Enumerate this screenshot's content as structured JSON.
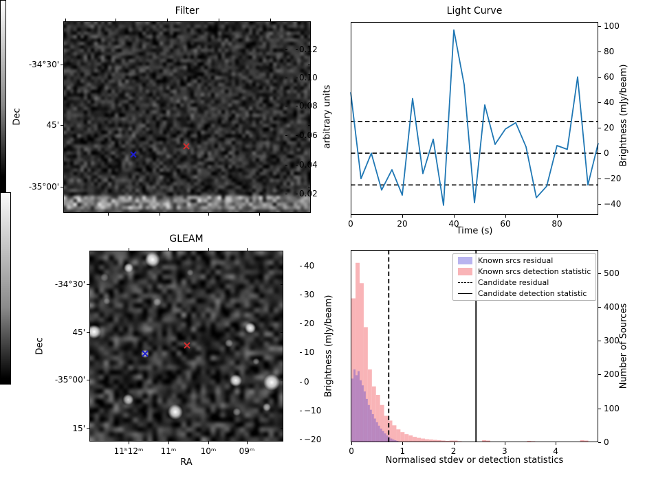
{
  "chart_data": [
    {
      "id": "filter",
      "type": "heatmap",
      "title": "Filter",
      "ylabel": "Dec",
      "yticks": [
        "-34°30'",
        "45'",
        "-35°00'"
      ],
      "colorbar": {
        "label": "arbitrary units",
        "ticks": [
          "0.12",
          "0.10",
          "0.08",
          "0.06",
          "0.04",
          "0.02"
        ]
      },
      "markers": [
        {
          "name": "known-source-marker",
          "color": "#1f1fd0",
          "fx": 0.283,
          "fy": 0.695
        },
        {
          "name": "candidate-marker",
          "color": "#d02f2f",
          "fx": 0.497,
          "fy": 0.652
        }
      ]
    },
    {
      "id": "light-curve",
      "type": "line",
      "title": "Light Curve",
      "xlabel": "Time (s)",
      "ylabel": "Brightness (mJy/beam)",
      "line_color": "#1f77b4",
      "x": [
        0,
        4,
        8,
        12,
        16,
        20,
        24,
        28,
        32,
        36,
        40,
        44,
        48,
        52,
        56,
        60,
        64,
        68,
        72,
        76,
        80,
        84,
        88,
        92,
        96
      ],
      "y": [
        48,
        -20,
        0,
        -29,
        -13,
        -33,
        43,
        -16,
        11,
        -41,
        97,
        54,
        -39,
        38,
        7,
        19,
        24,
        5,
        -35,
        -26,
        6,
        3,
        60,
        -25,
        8
      ],
      "hlines": [
        25,
        0,
        -25
      ],
      "xticks": [
        0,
        20,
        40,
        60,
        80
      ],
      "yticks": [
        100,
        80,
        60,
        40,
        20,
        0,
        -20,
        -40
      ],
      "ytick_labels": [
        "100",
        "80",
        "60",
        "40",
        "20",
        "0",
        "−20",
        "−40"
      ],
      "xlim": [
        0,
        96
      ],
      "ylim": [
        -48.6,
        103.3
      ]
    },
    {
      "id": "gleam",
      "type": "heatmap",
      "title": "GLEAM",
      "xlabel": "RA",
      "ylabel": "Dec",
      "xticks": [
        "11ʰ12ᵐ",
        "11ᵐ",
        "10ᵐ",
        "09ᵐ"
      ],
      "yticks": [
        "-34°30'",
        "45'",
        "-35°00'",
        "15'"
      ],
      "colorbar": {
        "label": "Brightness (mJy/beam)",
        "ticks": [
          "40",
          "30",
          "20",
          "10",
          "0",
          "−10",
          "−20"
        ]
      },
      "markers": [
        {
          "name": "known-source-marker",
          "color": "#1f1fd0",
          "fx": 0.287,
          "fy": 0.54
        },
        {
          "name": "candidate-marker",
          "color": "#d02f2f",
          "fx": 0.504,
          "fy": 0.496
        }
      ],
      "sources": [
        {
          "fx": 0.326,
          "fy": 0.047,
          "r": 11,
          "a": 1.0
        },
        {
          "fx": 0.202,
          "fy": 0.09,
          "r": 7,
          "a": 0.85
        },
        {
          "fx": 0.078,
          "fy": 0.14,
          "r": 6,
          "a": 0.35
        },
        {
          "fx": 0.025,
          "fy": 0.425,
          "r": 10,
          "a": 1.0
        },
        {
          "fx": 0.287,
          "fy": 0.54,
          "r": 6,
          "a": 0.9
        },
        {
          "fx": 0.83,
          "fy": 0.405,
          "r": 8,
          "a": 0.95
        },
        {
          "fx": 0.755,
          "fy": 0.68,
          "r": 9,
          "a": 0.95
        },
        {
          "fx": 0.94,
          "fy": 0.69,
          "r": 12,
          "a": 1.0
        },
        {
          "fx": 0.443,
          "fy": 0.845,
          "r": 11,
          "a": 1.0
        },
        {
          "fx": 0.2,
          "fy": 0.78,
          "r": 8,
          "a": 0.8
        },
        {
          "fx": 0.86,
          "fy": 0.58,
          "r": 5,
          "a": 0.4
        },
        {
          "fx": 0.915,
          "fy": 0.82,
          "r": 6,
          "a": 0.6
        },
        {
          "fx": 0.76,
          "fy": 0.845,
          "r": 6,
          "a": 0.45
        },
        {
          "fx": 0.72,
          "fy": 0.485,
          "r": 6,
          "a": 0.45
        },
        {
          "fx": 0.35,
          "fy": 0.27,
          "r": 6,
          "a": 0.4
        },
        {
          "fx": 0.09,
          "fy": 0.265,
          "r": 5,
          "a": 0.3
        },
        {
          "fx": 0.52,
          "fy": 0.115,
          "r": 5,
          "a": 0.3
        }
      ]
    },
    {
      "id": "stats-histogram",
      "type": "bar",
      "xlabel": "Normalised stdev or detection statistics",
      "ylabel": "Number of Sources",
      "xticks": [
        0,
        1,
        2,
        3,
        4
      ],
      "yticks": [
        0,
        100,
        200,
        300,
        400,
        500
      ],
      "xlim": [
        -0.015,
        4.835
      ],
      "ylim": [
        0,
        568
      ],
      "series": [
        {
          "name": "Known srcs detection statistic",
          "color": "#f9b4b7",
          "bin_start": 0,
          "bin_width": 0.08,
          "values": [
            425,
            530,
            470,
            340,
            215,
            165,
            140,
            110,
            78,
            64,
            50,
            38,
            30,
            24,
            20,
            16,
            13,
            11,
            9,
            8,
            7,
            6,
            5,
            4,
            5,
            5,
            3,
            2,
            2,
            0,
            0,
            0,
            6,
            5,
            0,
            0,
            0,
            0,
            0,
            0,
            0,
            0,
            0,
            4,
            3,
            0,
            0,
            0,
            0,
            0,
            0,
            0,
            0,
            0,
            0,
            0,
            6,
            5
          ]
        },
        {
          "name": "Known srcs residual",
          "color": "rgba(55,45,210,0.33)",
          "bin_start": 0,
          "bin_width": 0.04,
          "values": [
            188,
            215,
            198,
            210,
            183,
            168,
            150,
            128,
            110,
            96,
            83,
            70,
            59,
            49,
            40,
            33,
            26,
            20,
            15,
            11,
            8,
            6,
            4,
            2
          ]
        }
      ],
      "vlines": [
        {
          "label": "Candidate residual",
          "style": "dashed",
          "x": 0.73
        },
        {
          "label": "Candidate detection statistic",
          "style": "solid",
          "x": 2.44
        }
      ],
      "legend": {
        "items": [
          {
            "label": "Known srcs residual",
            "swatch": "patch",
            "color": "#b9b4ef"
          },
          {
            "label": "Known srcs detection statistic",
            "swatch": "patch",
            "color": "#f9b4b7"
          },
          {
            "label": "Candidate residual",
            "swatch": "dashed-line",
            "color": "#000000"
          },
          {
            "label": "Candidate detection statistic",
            "swatch": "solid-line",
            "color": "#000000"
          }
        ]
      }
    }
  ]
}
